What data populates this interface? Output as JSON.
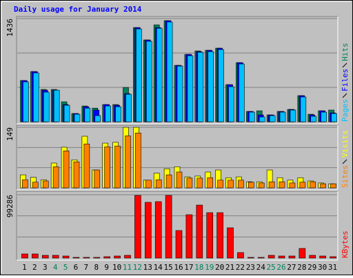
{
  "title": "Daily usage for January 2014",
  "chart_data": [
    {
      "type": "bar",
      "series": [
        {
          "name": "Hits",
          "color": "#00805c",
          "values": [
            574,
            699,
            450,
            450,
            278,
            115,
            220,
            190,
            240,
            240,
            478,
            1311,
            1139,
            1349,
            1407,
            785,
            938,
            986,
            995,
            1024,
            517,
            823,
            144,
            153,
            96,
            144,
            172,
            364,
            105,
            153,
            163
          ]
        },
        {
          "name": "Files",
          "color": "#0000ff",
          "values": [
            574,
            699,
            440,
            440,
            240,
            115,
            210,
            163,
            240,
            230,
            392,
            1311,
            1139,
            1311,
            1407,
            785,
            938,
            976,
            995,
            1024,
            517,
            823,
            144,
            96,
            96,
            144,
            172,
            364,
            96,
            153,
            124
          ]
        },
        {
          "name": "Pages",
          "color": "#00c0ff",
          "values": [
            555,
            680,
            412,
            440,
            230,
            105,
            190,
            86,
            220,
            210,
            383,
            1292,
            1120,
            1301,
            1388,
            775,
            919,
            967,
            976,
            1005,
            488,
            804,
            134,
            67,
            86,
            134,
            163,
            345,
            77,
            134,
            115
          ]
        }
      ],
      "ylim": [
        0,
        1436
      ],
      "yticks": [
        1436
      ]
    },
    {
      "type": "bar",
      "series": [
        {
          "name": "Visits",
          "color": "#ffff00",
          "values": [
            32,
            26,
            20,
            61,
            100,
            69,
            127,
            44,
            110,
            112,
            149,
            149,
            19,
            36,
            47,
            52,
            27,
            29,
            39,
            44,
            25,
            27,
            15,
            15,
            44,
            25,
            19,
            25,
            17,
            12,
            10
          ]
        },
        {
          "name": "Sites",
          "color": "#ff8000",
          "values": [
            20,
            14,
            17,
            52,
            91,
            64,
            108,
            44,
            101,
            103,
            128,
            135,
            19,
            20,
            32,
            39,
            24,
            24,
            25,
            19,
            19,
            19,
            14,
            12,
            15,
            15,
            12,
            14,
            15,
            10,
            10
          ]
        }
      ],
      "ylim": [
        0,
        149
      ],
      "yticks": [
        149
      ]
    },
    {
      "type": "bar",
      "categories": [
        "1",
        "2",
        "3",
        "4",
        "5",
        "6",
        "7",
        "8",
        "9",
        "10",
        "11",
        "12",
        "13",
        "14",
        "15",
        "16",
        "17",
        "18",
        "19",
        "20",
        "21",
        "22",
        "23",
        "24",
        "25",
        "26",
        "27",
        "28",
        "29",
        "30",
        "31"
      ],
      "category_colors": [
        "#000000",
        "#000000",
        "#000000",
        "#00805c",
        "#00805c",
        "#000000",
        "#000000",
        "#000000",
        "#000000",
        "#000000",
        "#00805c",
        "#00805c",
        "#000000",
        "#000000",
        "#000000",
        "#000000",
        "#000000",
        "#00805c",
        "#00805c",
        "#000000",
        "#000000",
        "#000000",
        "#000000",
        "#000000",
        "#00805c",
        "#00805c",
        "#000000",
        "#000000",
        "#000000",
        "#000000",
        "#000000"
      ],
      "series": [
        {
          "name": "KBytes",
          "color": "#ff0000",
          "values": [
            6475,
            6475,
            4317,
            4317,
            3238,
            1079,
            1079,
            1079,
            2158,
            3238,
            4317,
            98207,
            87415,
            88494,
            98207,
            43166,
            67986,
            83098,
            71223,
            71223,
            47482,
            8634,
            1079,
            1079,
            4317,
            3238,
            3238,
            15109,
            4317,
            3238,
            2158
          ]
        }
      ],
      "ylim": [
        0,
        99286
      ],
      "yticks": [
        99286
      ]
    }
  ]
}
